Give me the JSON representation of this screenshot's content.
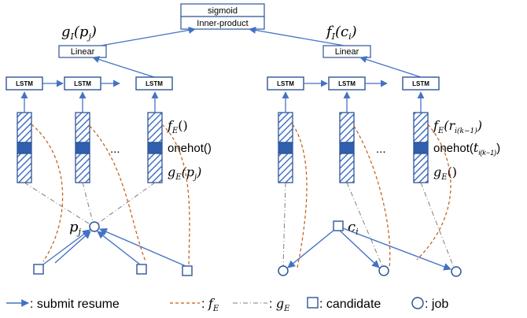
{
  "top": {
    "sigmoid_label": "sigmoid",
    "inner_product_label": "Inner-product"
  },
  "left": {
    "output_label": "g_I(p_j)",
    "linear_label": "Linear",
    "lstm_label": "LSTM",
    "ellipsis": "...",
    "fe_label": "f_E()",
    "onehot_label": "onehot()",
    "ge_label": "g_E(p_j)",
    "node_label": "p_j"
  },
  "right": {
    "output_label": "f_I(c_i)",
    "linear_label": "Linear",
    "lstm_label": "LSTM",
    "ellipsis": "...",
    "fe_label": "f_E(r_i(k-1))",
    "onehot_label": "onehot(t_i(k-1))",
    "ge_label": "g_E()",
    "node_label": "c_i"
  },
  "legend": {
    "submit": ": submit resume",
    "fe": ": f_E",
    "ge": ": g_E",
    "candidate": ": candidate",
    "job": ": job"
  },
  "colors": {
    "blue": "#4472c4",
    "orange": "#c55a11",
    "dashdot": "#7f7f7f"
  }
}
